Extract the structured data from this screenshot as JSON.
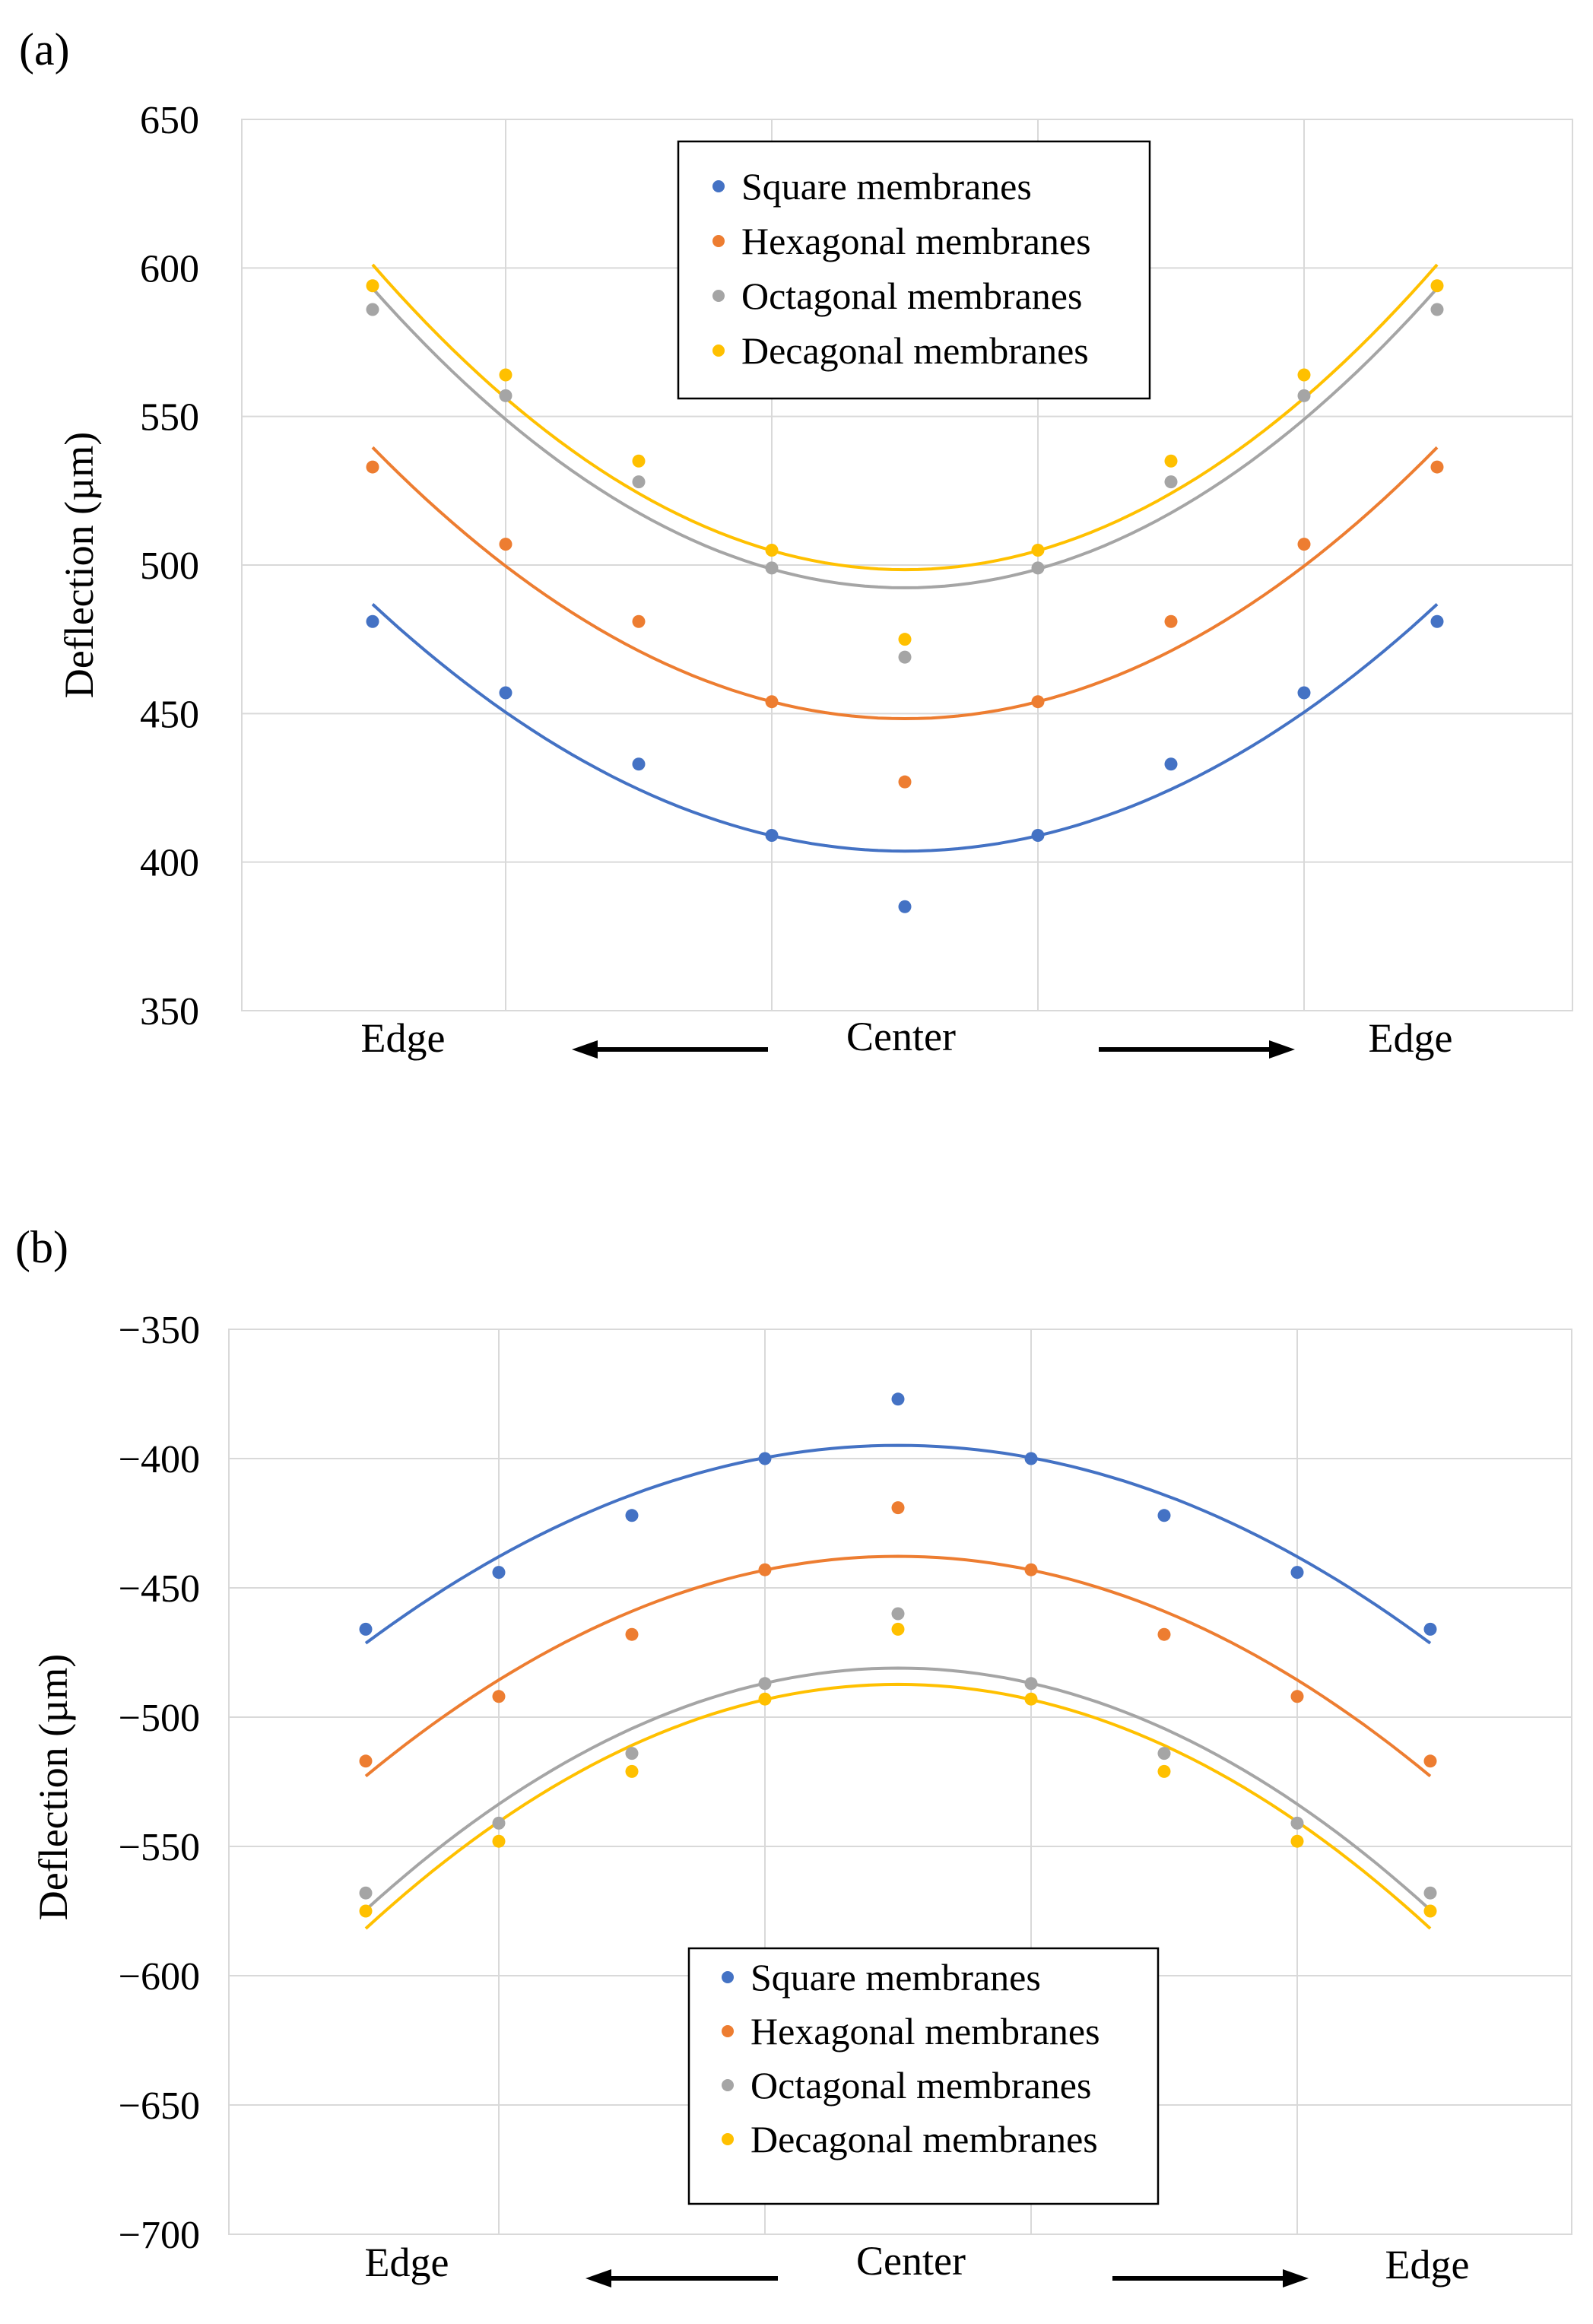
{
  "chart_data": [
    {
      "type": "scatter",
      "panel_label": "(a)",
      "ylabel": "Deflection (µm)",
      "xlabel": "",
      "ylim": [
        350,
        650
      ],
      "yticks": [
        "350",
        "400",
        "450",
        "500",
        "550",
        "600",
        "650"
      ],
      "grid": true,
      "x": [
        0,
        1,
        2,
        3,
        4,
        5,
        6,
        7,
        8
      ],
      "x_annotations": {
        "left": "Edge",
        "center": "Center",
        "right": "Edge"
      },
      "legend_position": "top-center",
      "series": [
        {
          "name": "Square membranes",
          "color": "#4472C4",
          "values": [
            481,
            457,
            433,
            409,
            385,
            409,
            433,
            457,
            481
          ],
          "trendline": "polynomial-2"
        },
        {
          "name": "Hexagonal membranes",
          "color": "#ED7D31",
          "values": [
            533,
            507,
            481,
            454,
            427,
            454,
            481,
            507,
            533
          ],
          "trendline": "polynomial-2"
        },
        {
          "name": "Octagonal membranes",
          "color": "#A5A5A5",
          "values": [
            586,
            557,
            528,
            499,
            469,
            499,
            528,
            557,
            586
          ],
          "trendline": "polynomial-2"
        },
        {
          "name": "Decagonal membranes",
          "color": "#FFC000",
          "values": [
            594,
            564,
            535,
            505,
            475,
            505,
            535,
            564,
            594
          ],
          "trendline": "polynomial-2"
        }
      ]
    },
    {
      "type": "scatter",
      "panel_label": "(b)",
      "ylabel": "Deflection (µm)",
      "xlabel": "",
      "ylim": [
        -700,
        -350
      ],
      "yticks": [
        "−700",
        "−650",
        "−600",
        "−550",
        "−500",
        "−450",
        "−400",
        "−350"
      ],
      "grid": true,
      "x": [
        0,
        1,
        2,
        3,
        4,
        5,
        6,
        7,
        8
      ],
      "x_annotations": {
        "left": "Edge",
        "center": "Center",
        "right": "Edge"
      },
      "legend_position": "bottom-center",
      "series": [
        {
          "name": "Square membranes",
          "color": "#4472C4",
          "values": [
            -466,
            -444,
            -422,
            -400,
            -377,
            -400,
            -422,
            -444,
            -466
          ],
          "trendline": "polynomial-2"
        },
        {
          "name": "Hexagonal membranes",
          "color": "#ED7D31",
          "values": [
            -517,
            -492,
            -468,
            -443,
            -419,
            -443,
            -468,
            -492,
            -517
          ],
          "trendline": "polynomial-2"
        },
        {
          "name": "Octagonal membranes",
          "color": "#A5A5A5",
          "values": [
            -568,
            -541,
            -514,
            -487,
            -460,
            -487,
            -514,
            -541,
            -568
          ],
          "trendline": "polynomial-2"
        },
        {
          "name": "Decagonal membranes",
          "color": "#FFC000",
          "values": [
            -575,
            -548,
            -521,
            -493,
            -466,
            -493,
            -521,
            -548,
            -575
          ],
          "trendline": "polynomial-2"
        }
      ]
    }
  ]
}
